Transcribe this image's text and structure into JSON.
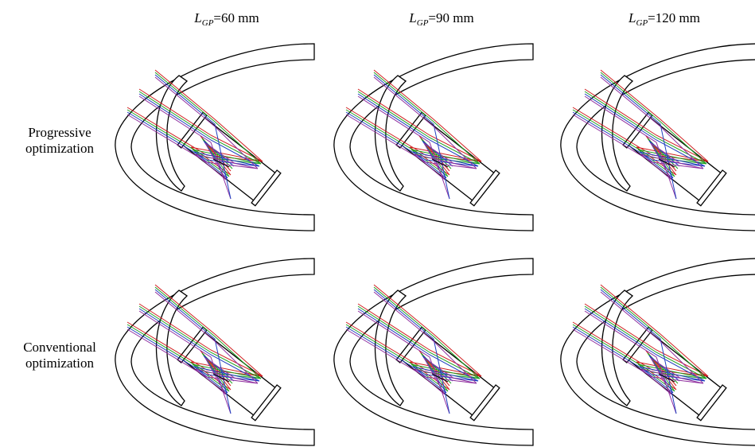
{
  "columns": [
    {
      "symbol": "L",
      "subscript": "GP",
      "text": "=60 mm"
    },
    {
      "symbol": "L",
      "subscript": "GP",
      "text": "=90 mm"
    },
    {
      "symbol": "L",
      "subscript": "GP",
      "text": "=120 mm"
    }
  ],
  "rows": [
    {
      "lines": [
        "Progressive",
        "optimization"
      ]
    },
    {
      "lines": [
        "Conventional",
        "optimization"
      ]
    }
  ]
}
